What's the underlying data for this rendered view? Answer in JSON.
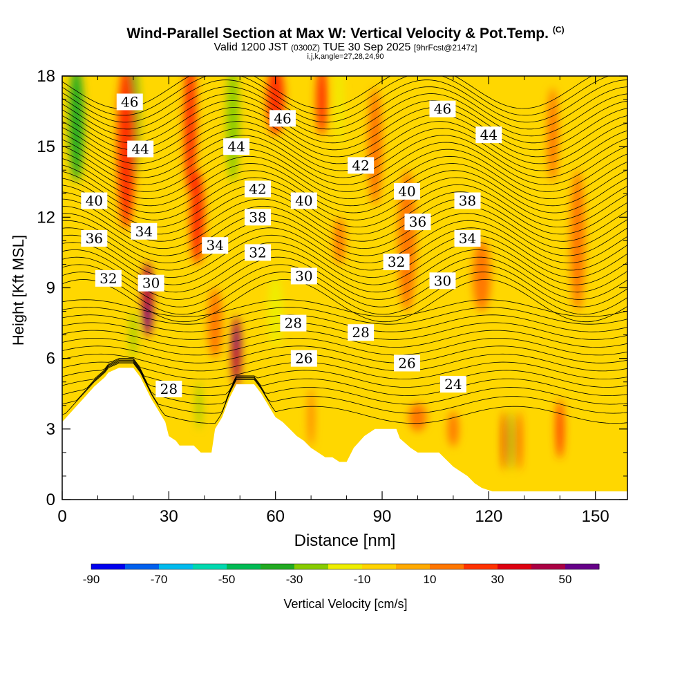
{
  "chart_data": {
    "type": "heatmap",
    "title": "Wind-Parallel Section at Max W: Vertical Velocity & Pot.Temp.",
    "title_tag": "(C)",
    "subtitle": {
      "valid": "Valid 1200 JST",
      "utc": "(0300Z)",
      "date": "TUE 30 Sep 2025",
      "forecast": "[9hrFcst@2147z]"
    },
    "subtitle2": "i,j,k,angle=27,28,24,90",
    "xlabel": "Distance [nm]",
    "ylabel": "Height [Kft MSL]",
    "xlim": [
      0,
      159
    ],
    "ylim": [
      0,
      18
    ],
    "xticks": [
      "0",
      "30",
      "60",
      "90",
      "120",
      "150"
    ],
    "yticks": [
      "0",
      "3",
      "6",
      "9",
      "12",
      "15",
      "18"
    ],
    "colorbar": {
      "label": "Vertical Velocity [cm/s]",
      "tick_labels": [
        "-90",
        "-70",
        "-50",
        "-30",
        "-10",
        "10",
        "30",
        "50"
      ],
      "tick_values": [
        -90,
        -70,
        -50,
        -30,
        -10,
        10,
        30,
        50
      ],
      "range": [
        -90,
        60
      ],
      "colors": [
        "#0000ee",
        "#0060ee",
        "#00bbee",
        "#00d9b0",
        "#00bb55",
        "#22aa22",
        "#88cc00",
        "#eeee00",
        "#ffd400",
        "#ffaa00",
        "#ff7700",
        "#ff3300",
        "#dd0011",
        "#aa0044",
        "#660088"
      ]
    },
    "background_color": "#ffd700",
    "terrain_color": "#ffffff",
    "terrain_profile": [
      [
        0,
        3.3
      ],
      [
        3,
        3.8
      ],
      [
        6,
        4.3
      ],
      [
        9,
        4.8
      ],
      [
        12,
        5.2
      ],
      [
        13,
        5.4
      ],
      [
        16,
        5.6
      ],
      [
        20,
        5.6
      ],
      [
        22,
        5.2
      ],
      [
        25,
        4.3
      ],
      [
        27,
        3.8
      ],
      [
        29,
        3.3
      ],
      [
        30,
        2.7
      ],
      [
        32,
        2.5
      ],
      [
        33,
        2.3
      ],
      [
        37,
        2.3
      ],
      [
        39,
        2.0
      ],
      [
        42,
        2.0
      ],
      [
        43,
        3.0
      ],
      [
        45,
        3.5
      ],
      [
        47,
        4.3
      ],
      [
        49,
        4.9
      ],
      [
        54,
        4.9
      ],
      [
        56,
        4.5
      ],
      [
        58,
        4.0
      ],
      [
        60,
        3.5
      ],
      [
        62,
        3.3
      ],
      [
        64,
        3.0
      ],
      [
        66,
        2.7
      ],
      [
        68,
        2.5
      ],
      [
        70,
        2.2
      ],
      [
        72,
        2.0
      ],
      [
        74,
        1.8
      ],
      [
        76,
        1.8
      ],
      [
        78,
        1.6
      ],
      [
        80,
        1.6
      ],
      [
        82,
        2.2
      ],
      [
        85,
        2.7
      ],
      [
        88,
        3.0
      ],
      [
        94,
        3.0
      ],
      [
        95,
        2.6
      ],
      [
        98,
        2.2
      ],
      [
        100,
        2.0
      ],
      [
        106,
        2.0
      ],
      [
        108,
        1.7
      ],
      [
        110,
        1.4
      ],
      [
        112,
        1.2
      ],
      [
        114,
        1.0
      ],
      [
        116,
        0.7
      ],
      [
        118,
        0.5
      ],
      [
        121,
        0.35
      ],
      [
        159,
        0.35
      ]
    ],
    "theta_contours": {
      "units": "C",
      "levels": [
        24,
        26,
        28,
        30,
        32,
        34,
        36,
        38,
        40,
        42,
        44,
        46
      ],
      "spacing": 0.5,
      "labels": [
        {
          "text": "46",
          "x": 19,
          "y": 16.9
        },
        {
          "text": "46",
          "x": 62,
          "y": 16.2
        },
        {
          "text": "46",
          "x": 107,
          "y": 16.6
        },
        {
          "text": "44",
          "x": 22,
          "y": 14.9
        },
        {
          "text": "44",
          "x": 49,
          "y": 15.0
        },
        {
          "text": "44",
          "x": 120,
          "y": 15.5
        },
        {
          "text": "42",
          "x": 55,
          "y": 13.2
        },
        {
          "text": "42",
          "x": 84,
          "y": 14.2
        },
        {
          "text": "40",
          "x": 9,
          "y": 12.7
        },
        {
          "text": "40",
          "x": 68,
          "y": 12.7
        },
        {
          "text": "40",
          "x": 97,
          "y": 13.1
        },
        {
          "text": "38",
          "x": 55,
          "y": 12.0
        },
        {
          "text": "38",
          "x": 114,
          "y": 12.7
        },
        {
          "text": "36",
          "x": 9,
          "y": 11.1
        },
        {
          "text": "36",
          "x": 100,
          "y": 11.8
        },
        {
          "text": "34",
          "x": 23,
          "y": 11.4
        },
        {
          "text": "34",
          "x": 43,
          "y": 10.8
        },
        {
          "text": "34",
          "x": 114,
          "y": 11.1
        },
        {
          "text": "32",
          "x": 13,
          "y": 9.4
        },
        {
          "text": "32",
          "x": 55,
          "y": 10.5
        },
        {
          "text": "32",
          "x": 94,
          "y": 10.1
        },
        {
          "text": "30",
          "x": 25,
          "y": 9.2
        },
        {
          "text": "30",
          "x": 68,
          "y": 9.5
        },
        {
          "text": "30",
          "x": 107,
          "y": 9.3
        },
        {
          "text": "28",
          "x": 65,
          "y": 7.5
        },
        {
          "text": "28",
          "x": 84,
          "y": 7.1
        },
        {
          "text": "28",
          "x": 30,
          "y": 4.7
        },
        {
          "text": "26",
          "x": 68,
          "y": 6.0
        },
        {
          "text": "26",
          "x": 97,
          "y": 5.8
        },
        {
          "text": "24",
          "x": 110,
          "y": 4.9
        }
      ]
    },
    "vertical_velocity_features": [
      {
        "x": 4,
        "y": 16,
        "value": -40,
        "width": 4,
        "height": 5
      },
      {
        "x": 20,
        "y": 16,
        "value": -40,
        "width": 3,
        "height": 5
      },
      {
        "x": 18,
        "y": 15,
        "value": 20,
        "width": 5,
        "height": 7
      },
      {
        "x": 24,
        "y": 8.5,
        "value": 40,
        "width": 3,
        "height": 3.2
      },
      {
        "x": 24,
        "y": 7.7,
        "value": 55,
        "width": 1.5,
        "height": 1.2
      },
      {
        "x": 20,
        "y": 7,
        "value": -30,
        "width": 1.5,
        "height": 2
      },
      {
        "x": 36,
        "y": 16,
        "value": 20,
        "width": 3.5,
        "height": 6
      },
      {
        "x": 38,
        "y": 12,
        "value": 20,
        "width": 4,
        "height": 4
      },
      {
        "x": 43,
        "y": 7.5,
        "value": 15,
        "width": 4,
        "height": 3
      },
      {
        "x": 49,
        "y": 6.3,
        "value": 45,
        "width": 2.5,
        "height": 3
      },
      {
        "x": 49,
        "y": 6.8,
        "value": 55,
        "width": 1.2,
        "height": 0.9
      },
      {
        "x": 38.5,
        "y": 4,
        "value": -30,
        "width": 1.3,
        "height": 2
      },
      {
        "x": 48,
        "y": 16,
        "value": -25,
        "width": 3.5,
        "height": 5
      },
      {
        "x": 60,
        "y": 17,
        "value": 20,
        "width": 5,
        "height": 3
      },
      {
        "x": 73,
        "y": 17,
        "value": 25,
        "width": 3,
        "height": 3
      },
      {
        "x": 78,
        "y": 17,
        "value": -20,
        "width": 2,
        "height": 4
      },
      {
        "x": 88,
        "y": 15,
        "value": 15,
        "width": 4,
        "height": 5
      },
      {
        "x": 78,
        "y": 11,
        "value": 15,
        "width": 3,
        "height": 2
      },
      {
        "x": 70,
        "y": 3.5,
        "value": 15,
        "width": 1.5,
        "height": 2.5
      },
      {
        "x": 60,
        "y": 8,
        "value": -15,
        "width": 4,
        "height": 3
      },
      {
        "x": 97,
        "y": 11,
        "value": 12,
        "width": 5,
        "height": 6
      },
      {
        "x": 118,
        "y": 9.5,
        "value": 12,
        "width": 5,
        "height": 3
      },
      {
        "x": 145,
        "y": 11,
        "value": 12,
        "width": 4,
        "height": 6
      },
      {
        "x": 138,
        "y": 15.5,
        "value": 12,
        "width": 3,
        "height": 4
      },
      {
        "x": 124.5,
        "y": 2.5,
        "value": 35,
        "width": 1.2,
        "height": 2.5
      },
      {
        "x": 126.5,
        "y": 2.5,
        "value": -35,
        "width": 0.8,
        "height": 2.5
      },
      {
        "x": 128.5,
        "y": 2.5,
        "value": 20,
        "width": 1.2,
        "height": 2.5
      },
      {
        "x": 140,
        "y": 3,
        "value": 20,
        "width": 2,
        "height": 2.5
      },
      {
        "x": 100,
        "y": 3.5,
        "value": 15,
        "width": 5,
        "height": 1.2
      },
      {
        "x": 110,
        "y": 3,
        "value": 15,
        "width": 3,
        "height": 1.5
      }
    ]
  }
}
